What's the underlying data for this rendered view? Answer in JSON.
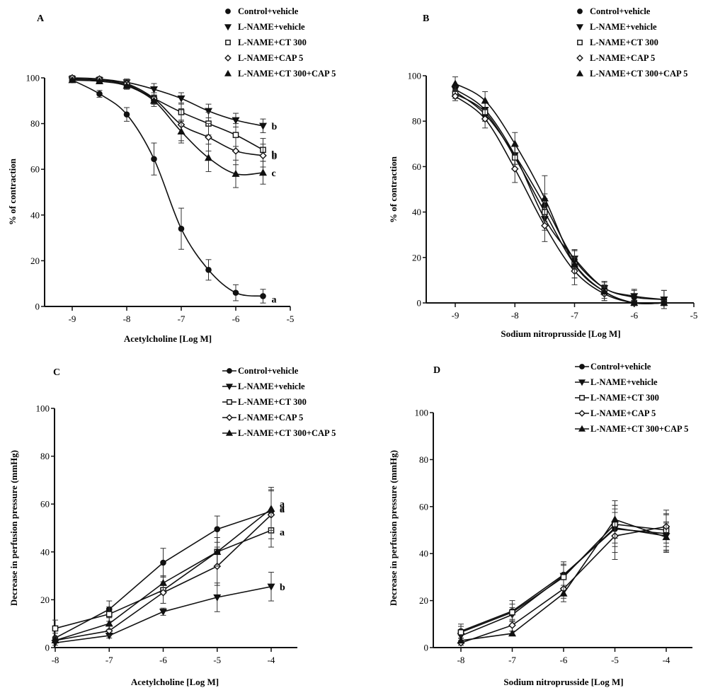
{
  "figure": {
    "panels": [
      "A",
      "B",
      "C",
      "D"
    ]
  },
  "chart_data": [
    {
      "panel": "A",
      "type": "line",
      "curve": "sigmoidal-fit",
      "title": "A",
      "xlabel": "Acetylcholine [Log M]",
      "ylabel": "% of contraction",
      "xlim": [
        -9.5,
        -5
      ],
      "ylim": [
        0,
        100
      ],
      "xticks": [
        -9,
        -8,
        -7,
        -6,
        -5
      ],
      "yticks": [
        0,
        20,
        40,
        60,
        80,
        100
      ],
      "legend_position": "top-right",
      "legend_style": "marker-only",
      "x": [
        -9,
        -8.5,
        -8,
        -7.5,
        -7,
        -6.5,
        -6,
        -5.5
      ],
      "series": [
        {
          "name": "Control+vehicle",
          "marker": "filled-circle",
          "values": [
            99,
            93,
            84,
            64.5,
            34,
            16,
            6,
            4.5
          ],
          "errors": [
            1,
            1.5,
            3,
            7,
            9,
            4.5,
            3.5,
            3
          ],
          "sig": "a"
        },
        {
          "name": "L-NAME+vehicle",
          "marker": "filled-triangle-down",
          "values": [
            99.5,
            99,
            98,
            95,
            91,
            85.5,
            81.5,
            79
          ],
          "errors": [
            1,
            1,
            1.5,
            2.5,
            2.5,
            3,
            3,
            3
          ],
          "sig": "b"
        },
        {
          "name": "L-NAME+CT 300",
          "marker": "open-square",
          "values": [
            99.5,
            99,
            97,
            91,
            85,
            80,
            75,
            68.5
          ],
          "errors": [
            1,
            1,
            1.5,
            2.5,
            4,
            5,
            5,
            5
          ],
          "sig": "b"
        },
        {
          "name": "L-NAME+CAP 5",
          "marker": "open-diamond",
          "values": [
            100,
            99.5,
            97.5,
            91,
            79.5,
            74,
            68,
            66
          ],
          "errors": [
            1,
            1,
            1.5,
            2.5,
            7,
            6,
            6,
            5
          ],
          "sig": "b"
        },
        {
          "name": "L-NAME+CT 300+CAP 5",
          "marker": "filled-triangle-up",
          "values": [
            99,
            98.5,
            96.5,
            90,
            76.5,
            65,
            58,
            58.5
          ],
          "errors": [
            1,
            1,
            1.5,
            2.5,
            5,
            6,
            6,
            5
          ],
          "sig": "c"
        }
      ]
    },
    {
      "panel": "B",
      "type": "line",
      "curve": "sigmoidal-fit",
      "title": "B",
      "xlabel": "Sodium nitroprusside [Log M]",
      "ylabel": "% of contraction",
      "xlim": [
        -9.5,
        -5
      ],
      "ylim": [
        0,
        100
      ],
      "xticks": [
        -9,
        -8,
        -7,
        -6,
        -5
      ],
      "yticks": [
        0,
        20,
        40,
        60,
        80,
        100
      ],
      "legend_position": "top-right",
      "legend_style": "marker-only",
      "x": [
        -9,
        -8.5,
        -8,
        -7.5,
        -7,
        -6.5,
        -6,
        -5.5
      ],
      "series": [
        {
          "name": "Control+vehicle",
          "marker": "filled-circle",
          "values": [
            93,
            83,
            65,
            43,
            19,
            6.5,
            2.5,
            1.5
          ],
          "errors": [
            2,
            3,
            4,
            5,
            4,
            3,
            3,
            4
          ]
        },
        {
          "name": "L-NAME+vehicle",
          "marker": "filled-triangle-down",
          "values": [
            94,
            85,
            65,
            37,
            19.5,
            6.5,
            3,
            1.5
          ],
          "errors": [
            2,
            3,
            4,
            5,
            4,
            3,
            3,
            4
          ]
        },
        {
          "name": "L-NAME+CT 300",
          "marker": "open-square",
          "values": [
            92,
            84,
            64,
            40,
            17,
            5,
            0,
            0
          ],
          "errors": [
            2,
            4,
            5,
            6,
            6,
            4,
            1,
            1
          ]
        },
        {
          "name": "L-NAME+CAP 5",
          "marker": "open-diamond",
          "values": [
            91,
            81,
            59,
            34,
            14,
            4,
            0,
            0
          ],
          "errors": [
            2,
            4,
            6,
            7,
            6,
            3,
            1,
            1
          ]
        },
        {
          "name": "L-NAME+CT 300+CAP 5",
          "marker": "filled-triangle-up",
          "values": [
            96.5,
            89,
            70,
            46,
            17,
            5,
            0,
            0
          ],
          "errors": [
            3,
            4,
            5,
            10,
            6,
            3,
            1,
            1
          ]
        }
      ]
    },
    {
      "panel": "C",
      "type": "line",
      "curve": "straight-segments",
      "title": "C",
      "xlabel": "Acetylcholine [Log M]",
      "ylabel": "Decrease in perfusion pressure (mmHg)",
      "xlim": [
        -8,
        -3.5
      ],
      "ylim": [
        0,
        100
      ],
      "xticks": [
        -8,
        -7,
        -6,
        -5,
        -4
      ],
      "yticks": [
        0,
        20,
        40,
        60,
        80,
        100
      ],
      "legend_position": "top-right",
      "legend_style": "line-and-marker",
      "x": [
        -8,
        -7,
        -6,
        -5,
        -4
      ],
      "series": [
        {
          "name": "Control+vehicle",
          "marker": "filled-circle",
          "values": [
            4,
            16,
            35.5,
            49.5,
            57
          ],
          "errors": [
            2,
            3.5,
            6,
            5.5,
            9
          ],
          "sig": "a"
        },
        {
          "name": "L-NAME+vehicle",
          "marker": "filled-triangle-down",
          "values": [
            2,
            5,
            15,
            21,
            25.5
          ],
          "errors": [
            1,
            1,
            1.5,
            6,
            6
          ],
          "sig": "b"
        },
        {
          "name": "L-NAME+CT 300",
          "marker": "open-square",
          "values": [
            8,
            14,
            24,
            40,
            49
          ],
          "errors": [
            3.5,
            3,
            5.5,
            6,
            7
          ],
          "sig": "a"
        },
        {
          "name": "L-NAME+CAP 5",
          "marker": "open-diamond",
          "values": [
            3,
            7,
            23,
            34,
            55.5
          ],
          "errors": [
            1,
            2,
            4.5,
            8,
            10
          ],
          "sig": "a"
        },
        {
          "name": "L-NAME+CT 300+CAP 5",
          "marker": "filled-triangle-up",
          "values": [
            3,
            10,
            27,
            40,
            58
          ],
          "errors": [
            1,
            2.5,
            3,
            6,
            9
          ],
          "sig": "a"
        }
      ]
    },
    {
      "panel": "D",
      "type": "line",
      "curve": "straight-segments",
      "title": "D",
      "xlabel": "Sodium nitroprusside [Log M]",
      "ylabel": "Decrease in perfusion pressure (mmHg)",
      "xlim": [
        -8.5,
        -3.5
      ],
      "ylim": [
        0,
        100
      ],
      "xticks": [
        -8,
        -7,
        -6,
        -5,
        -4
      ],
      "yticks": [
        0,
        20,
        40,
        60,
        80,
        100
      ],
      "legend_position": "top-right",
      "legend_style": "line-and-marker",
      "x": [
        -8,
        -7,
        -6,
        -5,
        -4
      ],
      "series": [
        {
          "name": "Control+vehicle",
          "marker": "filled-circle",
          "values": [
            7,
            15.5,
            31,
            50.5,
            48.5
          ],
          "errors": [
            3,
            4.5,
            5.5,
            10,
            8
          ]
        },
        {
          "name": "L-NAME+vehicle",
          "marker": "filled-triangle-down",
          "values": [
            5,
            14,
            30.5,
            51,
            47.5
          ],
          "errors": [
            2,
            3,
            5,
            8,
            6
          ]
        },
        {
          "name": "L-NAME+CT 300",
          "marker": "open-square",
          "values": [
            6.5,
            15,
            30,
            52.5,
            50
          ],
          "errors": [
            2.5,
            3.5,
            5,
            8,
            7
          ]
        },
        {
          "name": "L-NAME+CAP 5",
          "marker": "open-diamond",
          "values": [
            2,
            9.5,
            25,
            47.5,
            51.5
          ],
          "errors": [
            1,
            2.5,
            4,
            10,
            7
          ]
        },
        {
          "name": "L-NAME+CT 300+CAP 5",
          "marker": "filled-triangle-up",
          "values": [
            3,
            6,
            23,
            54.5,
            47
          ],
          "errors": [
            1,
            1,
            3.5,
            8,
            6
          ]
        }
      ]
    }
  ]
}
